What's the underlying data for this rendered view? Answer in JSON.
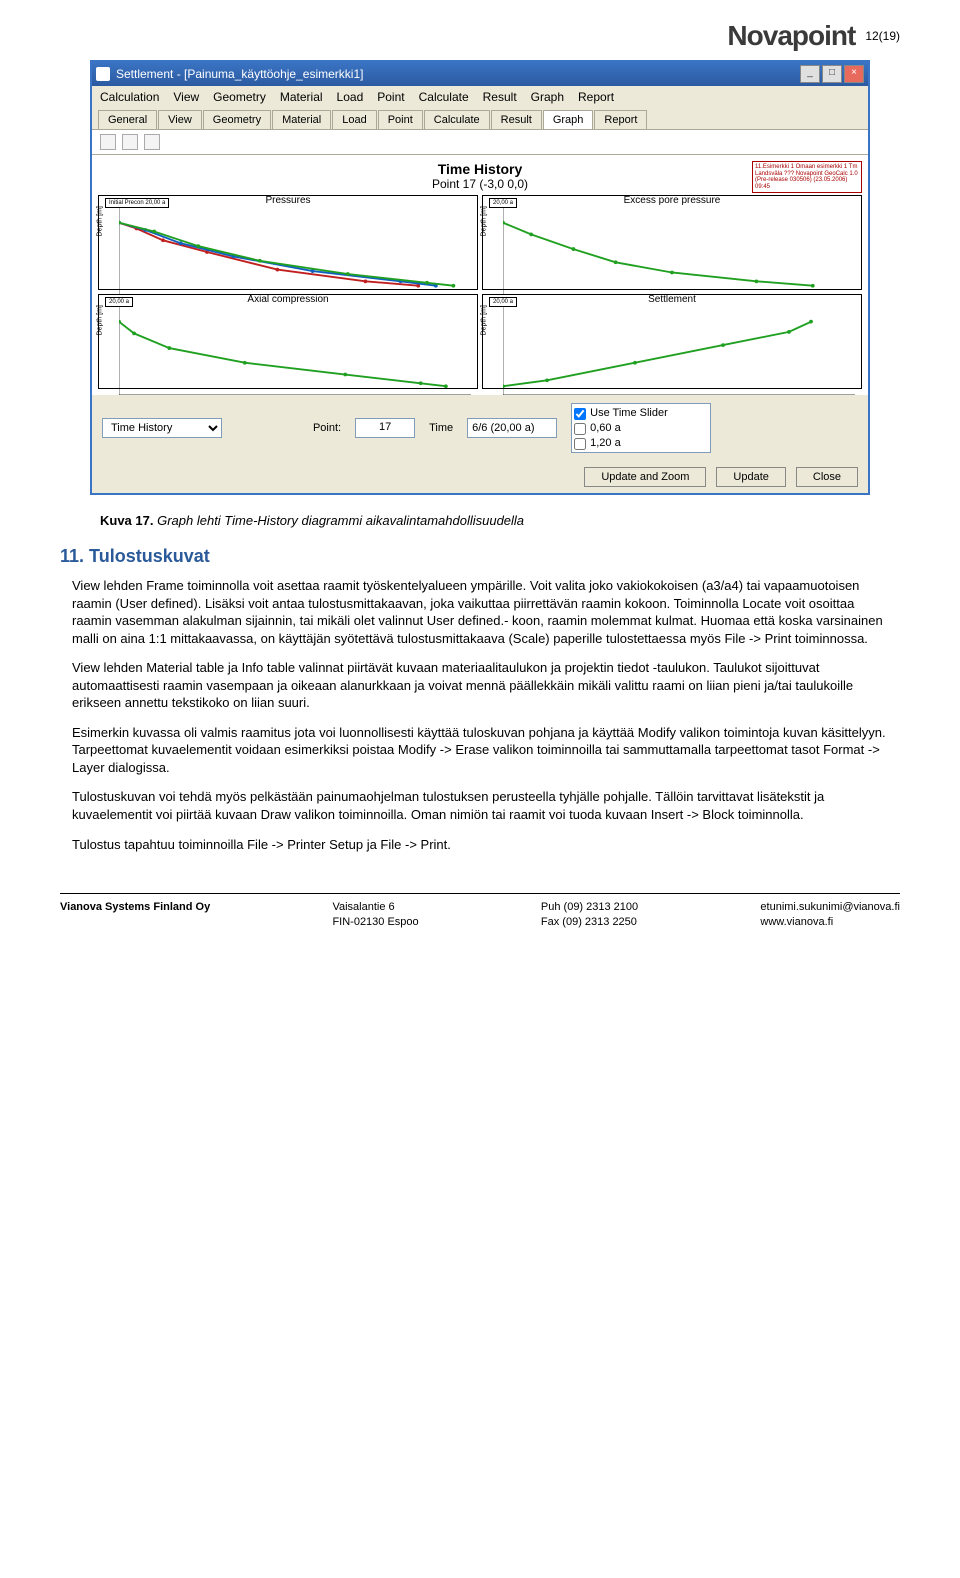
{
  "page": {
    "number": "12(19)"
  },
  "brand": {
    "name": "Novapoint"
  },
  "window": {
    "title": "Settlement - [Painuma_käyttöohje_esimerkki1]",
    "controls": {
      "min": "_",
      "max": "□",
      "close": "×"
    },
    "menus": [
      "Calculation",
      "View",
      "Geometry",
      "Material",
      "Load",
      "Point",
      "Calculate",
      "Result",
      "Graph",
      "Report"
    ],
    "tabs": [
      "General",
      "View",
      "Geometry",
      "Material",
      "Load",
      "Point",
      "Calculate",
      "Result",
      "Graph",
      "Report"
    ],
    "active_tab": "Graph"
  },
  "chart": {
    "title": "Time History",
    "subtitle": "Point 17 (-3,0 0,0)",
    "info_box": "11.Esimerkki 1\nOmaan esimerkki 1\nTm Landsväla ???\nNovapoint GeoCalc 1.0 (Pre-release 030506) (23.05.2006) 09:45",
    "panels": [
      {
        "title": "Pressures",
        "legend": "Initial  Precon  20,00 a",
        "ylabel": "Depth [m]",
        "series": [
          {
            "color": "#c02020",
            "values": [
              [
                0,
                0
              ],
              [
                10,
                -0.4
              ],
              [
                25,
                -1.2
              ],
              [
                50,
                -2.0
              ],
              [
                90,
                -3.2
              ],
              [
                140,
                -4.0
              ],
              [
                170,
                -4.3
              ]
            ]
          },
          {
            "color": "#1060c0",
            "values": [
              [
                0,
                0
              ],
              [
                15,
                -0.5
              ],
              [
                35,
                -1.4
              ],
              [
                65,
                -2.3
              ],
              [
                110,
                -3.3
              ],
              [
                160,
                -4.0
              ],
              [
                180,
                -4.3
              ]
            ]
          },
          {
            "color": "#20a020",
            "values": [
              [
                0,
                0
              ],
              [
                20,
                -0.6
              ],
              [
                45,
                -1.6
              ],
              [
                80,
                -2.6
              ],
              [
                130,
                -3.5
              ],
              [
                175,
                -4.1
              ],
              [
                190,
                -4.3
              ]
            ]
          }
        ],
        "xlim": [
          0,
          200
        ],
        "ylim": [
          -5,
          1
        ]
      },
      {
        "title": "Excess pore pressure",
        "legend": "20,00 a",
        "ylabel": "Depth [m]",
        "series": [
          {
            "color": "#20a020",
            "values": [
              [
                0,
                0
              ],
              [
                2,
                -0.8
              ],
              [
                5,
                -1.8
              ],
              [
                8,
                -2.7
              ],
              [
                12,
                -3.4
              ],
              [
                18,
                -4.0
              ],
              [
                22,
                -4.3
              ]
            ]
          }
        ],
        "xlim": [
          0,
          25
        ],
        "ylim": [
          -5,
          1
        ]
      },
      {
        "title": "Axial compression",
        "legend": "20,00 a",
        "ylabel": "Depth [m]",
        "series": [
          {
            "color": "#20a020",
            "values": [
              [
                0,
                0
              ],
              [
                0.003,
                -0.8
              ],
              [
                0.01,
                -1.8
              ],
              [
                0.025,
                -2.8
              ],
              [
                0.045,
                -3.6
              ],
              [
                0.06,
                -4.2
              ],
              [
                0.065,
                -4.4
              ]
            ]
          }
        ],
        "xlim": [
          0,
          0.07
        ],
        "ylim": [
          -5,
          1
        ]
      },
      {
        "title": "Settlement",
        "legend": "20,00 a",
        "ylabel": "Depth [m]",
        "series": [
          {
            "color": "#20a020",
            "values": [
              [
                0,
                -4.4
              ],
              [
                0.02,
                -4.0
              ],
              [
                0.06,
                -2.8
              ],
              [
                0.1,
                -1.6
              ],
              [
                0.13,
                -0.7
              ],
              [
                0.14,
                0
              ]
            ]
          }
        ],
        "xlim": [
          0,
          0.16
        ],
        "ylim": [
          -5,
          1
        ]
      }
    ]
  },
  "controls": {
    "view_select": "Time History",
    "point_label": "Point:",
    "point_value": "17",
    "time_label": "Time",
    "time_value": "6/6 (20,00 a)",
    "checklist": [
      {
        "label": "Use Time Slider",
        "checked": true
      },
      {
        "label": "0,60 a",
        "checked": false
      },
      {
        "label": "1,20 a",
        "checked": false
      }
    ],
    "buttons": {
      "update_zoom": "Update and Zoom",
      "update": "Update",
      "close": "Close"
    }
  },
  "caption": {
    "label": "Kuva 17.",
    "text": "Graph lehti Time-History diagrammi aikavalintamahdollisuudella"
  },
  "section": {
    "number": "11.",
    "title": "Tulostuskuvat"
  },
  "body": {
    "p1": "View lehden Frame toiminnolla voit asettaa raamit työskentelyalueen ympärille. Voit valita joko vakiokokoisen (a3/a4) tai vapaamuotoisen raamin (User defined). Lisäksi voit antaa tulostusmittakaavan, joka vaikuttaa piirrettävän raamin kokoon. Toiminnolla Locate voit osoittaa raamin vasemman alakulman sijainnin, tai mikäli olet valinnut User defined.- koon, raamin molemmat kulmat. Huomaa että koska varsinainen malli on aina 1:1 mittakaavassa, on käyttäjän syötettävä tulostusmittakaava (Scale) paperille tulostettaessa myös File -> Print toiminnossa.",
    "p2": "View lehden Material table ja Info table valinnat piirtävät kuvaan materiaalitaulukon ja projektin tiedot -taulukon. Taulukot sijoittuvat automaattisesti raamin vasempaan ja oikeaan alanurkkaan ja voivat mennä päällekkäin mikäli valittu raami on liian pieni ja/tai taulukoille erikseen annettu tekstikoko on liian suuri.",
    "p3": "Esimerkin kuvassa oli valmis raamitus jota voi luonnollisesti käyttää tuloskuvan pohjana ja käyttää Modify valikon toimintoja kuvan käsittelyyn. Tarpeettomat kuvaelementit voidaan esimerkiksi poistaa Modify -> Erase valikon toiminnoilla tai sammuttamalla tarpeettomat tasot Format -> Layer dialogissa.",
    "p4": "Tulostuskuvan voi tehdä myös pelkästään painumaohjelman tulostuksen perusteella tyhjälle pohjalle. Tällöin tarvittavat lisätekstit ja kuvaelementit voi piirtää kuvaan Draw valikon toiminnoilla. Oman nimiön tai raamit voi tuoda kuvaan Insert -> Block toiminnolla.",
    "p5": "Tulostus tapahtuu toiminnoilla File -> Printer Setup ja File -> Print."
  },
  "footer": {
    "company": "Vianova Systems Finland Oy",
    "addr1": "Vaisalantie 6",
    "addr2": "FIN-02130 Espoo",
    "tel": "Puh  (09) 2313 2100",
    "fax": "Fax  (09) 2313 2250",
    "email": "etunimi.sukunimi@vianova.fi",
    "web": "www.vianova.fi"
  }
}
